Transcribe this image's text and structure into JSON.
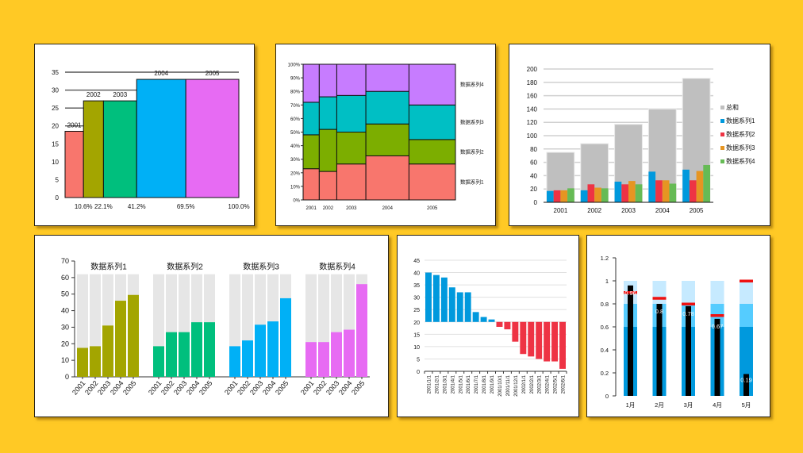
{
  "page": {
    "background": "#FFC925"
  },
  "chart_data": [
    {
      "id": "c1",
      "type": "bar",
      "title": "",
      "subtype": "variable-width",
      "categories": [
        "2001",
        "2002",
        "2003",
        "2004",
        "2005"
      ],
      "values": [
        18.5,
        27,
        27,
        33,
        33
      ],
      "cumulative_percent_labels": [
        "10.6%",
        "22.1%",
        "41.2%",
        "69.5%",
        "100.0%"
      ],
      "cumulative_percent": [
        10.6,
        22.1,
        41.2,
        69.5,
        100.0
      ],
      "colors": [
        "#F8766D",
        "#A3A500",
        "#00BF7D",
        "#00B0F6",
        "#E76BF3"
      ],
      "ylim": [
        0,
        35
      ],
      "yticks": [
        "0",
        "5",
        "10",
        "15",
        "20",
        "25",
        "30",
        "35"
      ],
      "grid": true
    },
    {
      "id": "c2",
      "type": "bar",
      "subtype": "marimekko-100%-stacked",
      "categories": [
        "2001",
        "2002",
        "2003",
        "2004",
        "2005"
      ],
      "widths_percent": [
        10.6,
        11.5,
        19.1,
        28.3,
        30.5
      ],
      "series": [
        {
          "name": "数据系列1",
          "values": [
            23,
            21,
            26.5,
            32.5,
            26.5
          ],
          "color": "#F8766D"
        },
        {
          "name": "数据系列2",
          "values": [
            25,
            31,
            23.5,
            23.5,
            18
          ],
          "color": "#7CAE00"
        },
        {
          "name": "数据系列3",
          "values": [
            24,
            24,
            27,
            24,
            25.5
          ],
          "color": "#00BFC4"
        },
        {
          "name": "数据系列4",
          "values": [
            28,
            24,
            23,
            20,
            30
          ],
          "color": "#C77CFF"
        }
      ],
      "ylim": [
        0,
        100
      ],
      "yticks": [
        "0%",
        "10%",
        "20%",
        "30%",
        "40%",
        "50%",
        "60%",
        "70%",
        "80%",
        "90%",
        "100%"
      ],
      "legend": "right"
    },
    {
      "id": "c3",
      "type": "bar",
      "subtype": "grouped-with-total-behind",
      "categories": [
        "2001",
        "2002",
        "2003",
        "2004",
        "2005"
      ],
      "series": [
        {
          "name": "总和",
          "values": [
            75,
            88,
            117,
            140,
            186
          ],
          "color": "#BFBFBF"
        },
        {
          "name": "数据系列1",
          "values": [
            17,
            18,
            31,
            46,
            49
          ],
          "color": "#0099DD"
        },
        {
          "name": "数据系列2",
          "values": [
            18,
            27,
            27,
            33,
            33
          ],
          "color": "#EE3344"
        },
        {
          "name": "数据系列3",
          "values": [
            18,
            22,
            32,
            33,
            47
          ],
          "color": "#E69522"
        },
        {
          "name": "数据系列4",
          "values": [
            21,
            21,
            27,
            28,
            56
          ],
          "color": "#66BB55"
        }
      ],
      "ylim": [
        0,
        200
      ],
      "yticks": [
        "0",
        "20",
        "40",
        "60",
        "80",
        "100",
        "120",
        "140",
        "160",
        "180",
        "200"
      ],
      "grid": true,
      "legend": "right"
    },
    {
      "id": "c4",
      "type": "bar",
      "subtype": "panel-small-multiples",
      "categories": [
        "2001",
        "2002",
        "2003",
        "2004",
        "2005"
      ],
      "background_value": 62,
      "background_color": "#E6E6E6",
      "series": [
        {
          "name": "数据系列1",
          "values": [
            17.5,
            18.5,
            31,
            46,
            49.5
          ],
          "color": "#A3A500"
        },
        {
          "name": "数据系列2",
          "values": [
            18.5,
            27,
            27,
            33,
            33
          ],
          "color": "#00BF7D"
        },
        {
          "name": "数据系列3",
          "values": [
            18.5,
            22,
            31.5,
            33.5,
            47.5
          ],
          "color": "#00B0F6"
        },
        {
          "name": "数据系列4",
          "values": [
            21,
            21,
            27,
            28.5,
            56
          ],
          "color": "#E76BF3"
        }
      ],
      "ylim": [
        0,
        70
      ],
      "yticks": [
        "0",
        "10",
        "20",
        "30",
        "40",
        "50",
        "60",
        "70"
      ]
    },
    {
      "id": "c5",
      "type": "bar",
      "subtype": "diverging-from-baseline",
      "baseline": 20,
      "categories": [
        "2001/1/1",
        "2001/2/1",
        "2001/3/1",
        "2001/4/1",
        "2001/5/1",
        "2001/6/1",
        "2001/7/1",
        "2001/8/1",
        "2001/9/1",
        "2001/10/1",
        "2001/11/1",
        "2001/12/1",
        "2002/1/1",
        "2002/2/1",
        "2002/3/1",
        "2002/4/1",
        "2002/5/1",
        "2002/6/1"
      ],
      "values": [
        40,
        39,
        38,
        34,
        32,
        32,
        24,
        22,
        21,
        18,
        17,
        12,
        7,
        6,
        5,
        4,
        4,
        1
      ],
      "color_above": "#0099DD",
      "color_below": "#EE3344",
      "ylim": [
        0,
        45
      ],
      "yticks": [
        "0",
        "5",
        "10",
        "15",
        "20",
        "25",
        "30",
        "35",
        "40",
        "45"
      ],
      "grid": true
    },
    {
      "id": "c6",
      "type": "bar",
      "subtype": "bullet",
      "categories": [
        "1月",
        "2月",
        "3月",
        "4月",
        "5月"
      ],
      "bands": [
        {
          "upto": 0.6,
          "color": "#0099DD"
        },
        {
          "upto": 0.8,
          "color": "#55CCFF"
        },
        {
          "upto": 1.0,
          "color": "#C6EAFF"
        }
      ],
      "actual": [
        0.96,
        0.8,
        0.78,
        0.67,
        0.19
      ],
      "actual_labels": [
        "0.96",
        "0.8",
        "0.78",
        "0.67",
        "0.19"
      ],
      "target": [
        0.9,
        0.85,
        0.8,
        0.7,
        1.0
      ],
      "actual_color": "#000000",
      "target_color": "#EE1111",
      "ylim": [
        0,
        1.2
      ],
      "yticks": [
        "0",
        "0.2",
        "0.4",
        "0.6",
        "0.8",
        "1",
        "1.2"
      ]
    }
  ]
}
